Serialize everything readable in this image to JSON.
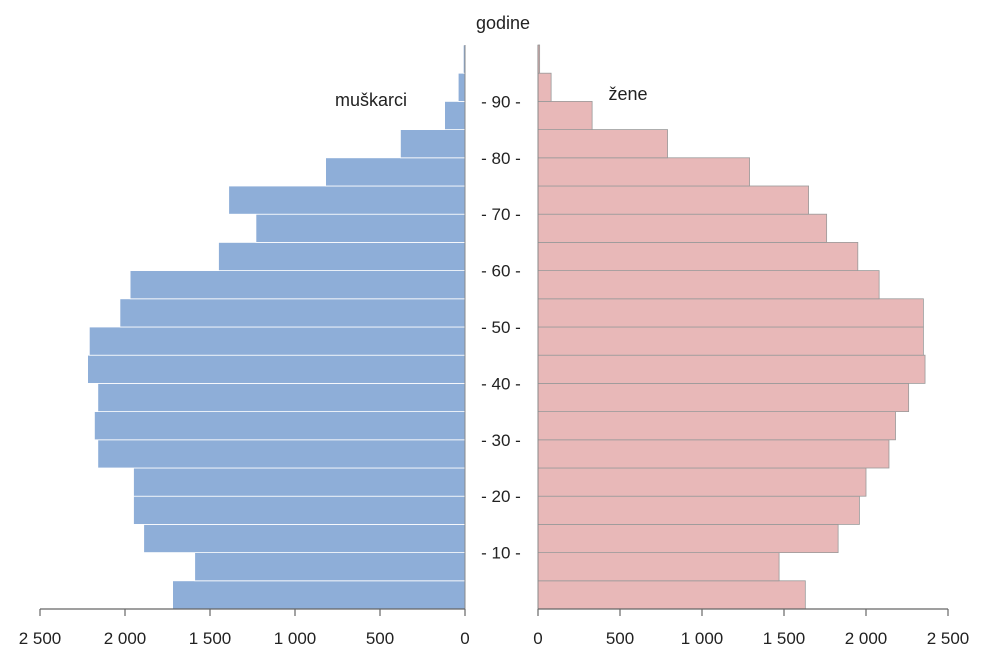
{
  "chart_data": {
    "type": "bar",
    "orientation": "horizontal",
    "subtype": "population-pyramid",
    "y_axis_label": "godine",
    "y_ticks": [
      "- 10 -",
      "- 20 -",
      "- 30 -",
      "- 40 -",
      "- 50 -",
      "- 60 -",
      "- 70 -",
      "- 80 -",
      "- 90 -"
    ],
    "x_tick_labels": [
      "2 500",
      "2 000",
      "1 500",
      "1 000",
      "500",
      "0"
    ],
    "x_ticks": [
      2500,
      2000,
      1500,
      1000,
      500,
      0
    ],
    "xlim": [
      0,
      2500
    ],
    "age_groups": [
      "0-4",
      "5-9",
      "10-14",
      "15-19",
      "20-24",
      "25-29",
      "30-34",
      "35-39",
      "40-44",
      "45-49",
      "50-54",
      "55-59",
      "60-64",
      "65-69",
      "70-74",
      "75-79",
      "80-84",
      "85-89",
      "90-94",
      "95+"
    ],
    "series": [
      {
        "name": "muškarci",
        "color": "#8eaed8",
        "values": [
          1720,
          1590,
          1890,
          1950,
          1950,
          2160,
          2180,
          2160,
          2220,
          2210,
          2030,
          1970,
          1450,
          1230,
          1390,
          820,
          380,
          120,
          40,
          10
        ]
      },
      {
        "name": "žene",
        "color": "#e8b8b8",
        "values": [
          1630,
          1470,
          1830,
          1960,
          2000,
          2140,
          2180,
          2260,
          2360,
          2350,
          2350,
          2080,
          1950,
          1760,
          1650,
          1290,
          790,
          330,
          80,
          10
        ]
      }
    ]
  }
}
